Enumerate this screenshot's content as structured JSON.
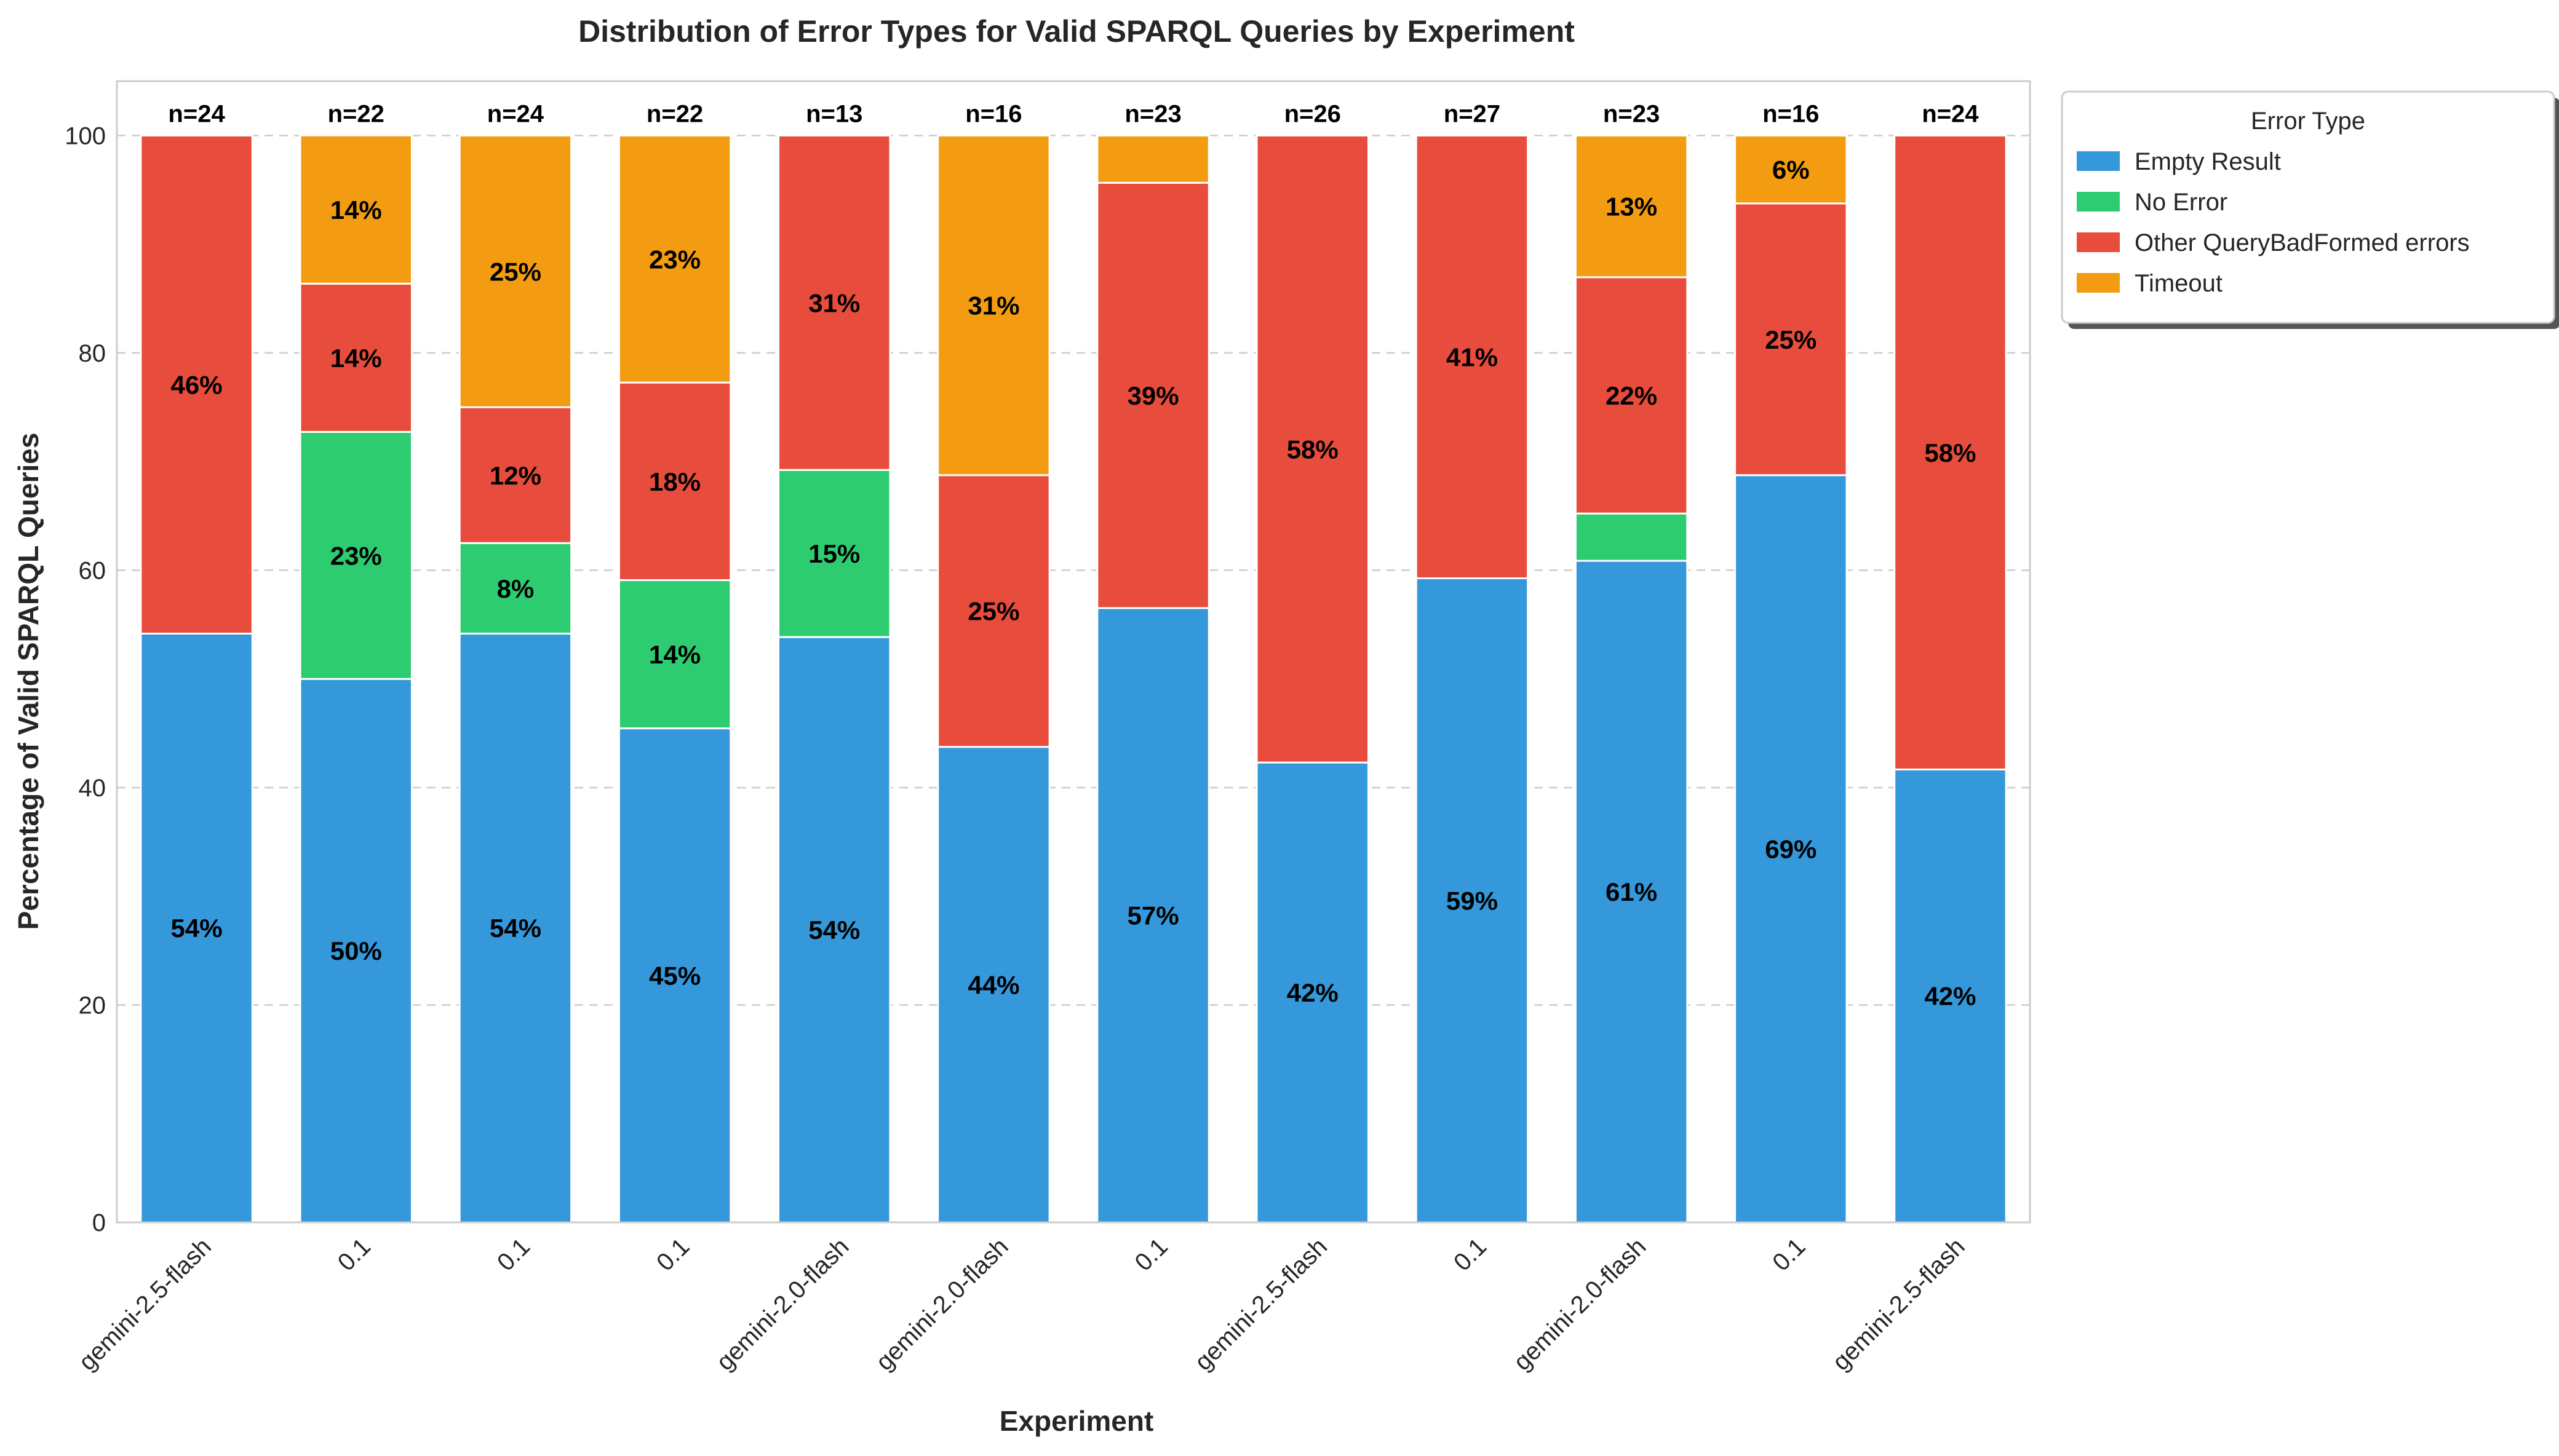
{
  "chart_data": {
    "type": "bar",
    "stacked": true,
    "title": "Distribution of Error Types for Valid SPARQL Queries by Experiment",
    "xlabel": "Experiment",
    "ylabel": "Percentage of Valid SPARQL Queries",
    "ylim": [
      0,
      105
    ],
    "yticks": [
      0,
      20,
      40,
      60,
      80,
      100
    ],
    "grid": true,
    "categories": [
      "gemini-2.5-flash",
      "0.1",
      "0.1",
      "0.1",
      "gemini-2.0-flash",
      "gemini-2.0-flash",
      "0.1",
      "gemini-2.5-flash",
      "0.1",
      "gemini-2.0-flash",
      "0.1",
      "gemini-2.5-flash"
    ],
    "totals": [
      "n=24",
      "n=22",
      "n=24",
      "n=22",
      "n=13",
      "n=16",
      "n=23",
      "n=26",
      "n=27",
      "n=23",
      "n=16",
      "n=24"
    ],
    "series": [
      {
        "name": "Empty Result",
        "color": "#3498db",
        "values": [
          54.17,
          50.0,
          54.17,
          45.45,
          53.85,
          43.75,
          56.52,
          42.31,
          59.26,
          60.87,
          68.75,
          41.67
        ],
        "labels": [
          "54%",
          "50%",
          "54%",
          "45%",
          "54%",
          "44%",
          "57%",
          "42%",
          "59%",
          "61%",
          "69%",
          "42%"
        ]
      },
      {
        "name": "No Error",
        "color": "#2ecc71",
        "values": [
          0,
          22.73,
          8.33,
          13.64,
          15.38,
          0,
          0,
          0,
          0,
          4.35,
          0,
          0
        ],
        "labels": [
          "",
          "23%",
          "8%",
          "14%",
          "15%",
          "",
          "",
          "",
          "",
          "",
          "",
          ""
        ]
      },
      {
        "name": "Other QueryBadFormed errors",
        "color": "#e74c3c",
        "values": [
          45.83,
          13.64,
          12.5,
          18.18,
          30.77,
          25.0,
          39.13,
          57.69,
          40.74,
          21.74,
          25.0,
          58.33
        ],
        "labels": [
          "46%",
          "14%",
          "12%",
          "18%",
          "31%",
          "25%",
          "39%",
          "58%",
          "41%",
          "22%",
          "25%",
          "58%"
        ]
      },
      {
        "name": "Timeout",
        "color": "#f39c12",
        "values": [
          0,
          13.64,
          25.0,
          22.73,
          0,
          31.25,
          4.35,
          0,
          0,
          13.04,
          6.25,
          0
        ],
        "labels": [
          "",
          "14%",
          "25%",
          "23%",
          "",
          "31%",
          "",
          "",
          "",
          "13%",
          "6%",
          ""
        ]
      }
    ],
    "legend": {
      "title": "Error Type",
      "position": "outside-top-right"
    }
  }
}
